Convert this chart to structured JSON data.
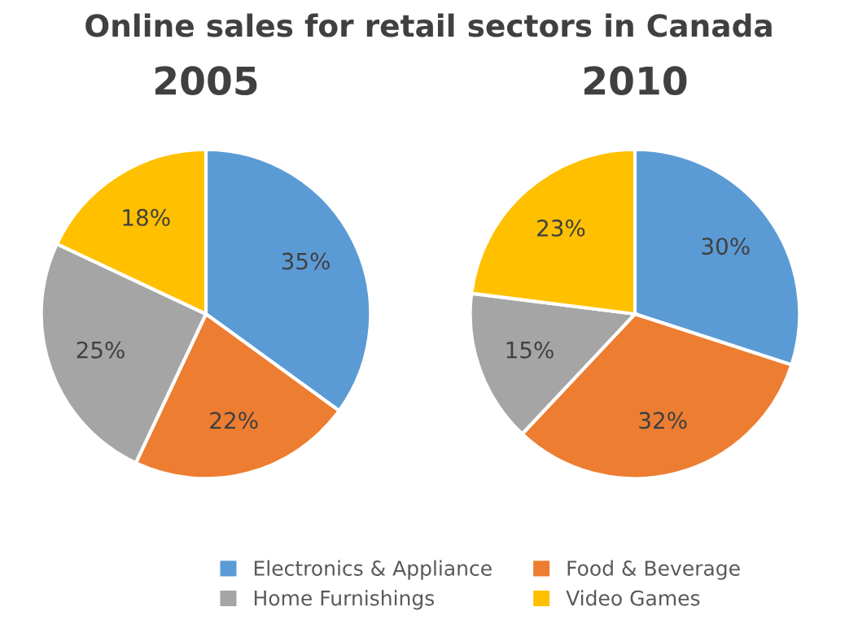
{
  "chart_data": [
    {
      "type": "pie",
      "title": "Online sales for retail sectors in Canada",
      "subtitle": "2005",
      "categories": [
        "Electronics & Appliance",
        "Food & Beverage",
        "Home Furnishings",
        "Video Games"
      ],
      "values": [
        35,
        22,
        25,
        18
      ],
      "colors": [
        "#5b9bd5",
        "#ed7d31",
        "#a5a5a5",
        "#ffc000"
      ],
      "value_labels": [
        "35%",
        "22%",
        "25%",
        "18%"
      ],
      "legend": "bottom"
    },
    {
      "type": "pie",
      "subtitle": "2010",
      "categories": [
        null,
        null,
        null,
        null
      ],
      "values": [
        30,
        32,
        15,
        23
      ],
      "colors": [
        "#5b9bd5",
        "#ed7d31",
        "#a5a5a5",
        "#ffc000"
      ],
      "value_labels": [
        "30%",
        "32%",
        "15%",
        "23%"
      ]
    }
  ]
}
